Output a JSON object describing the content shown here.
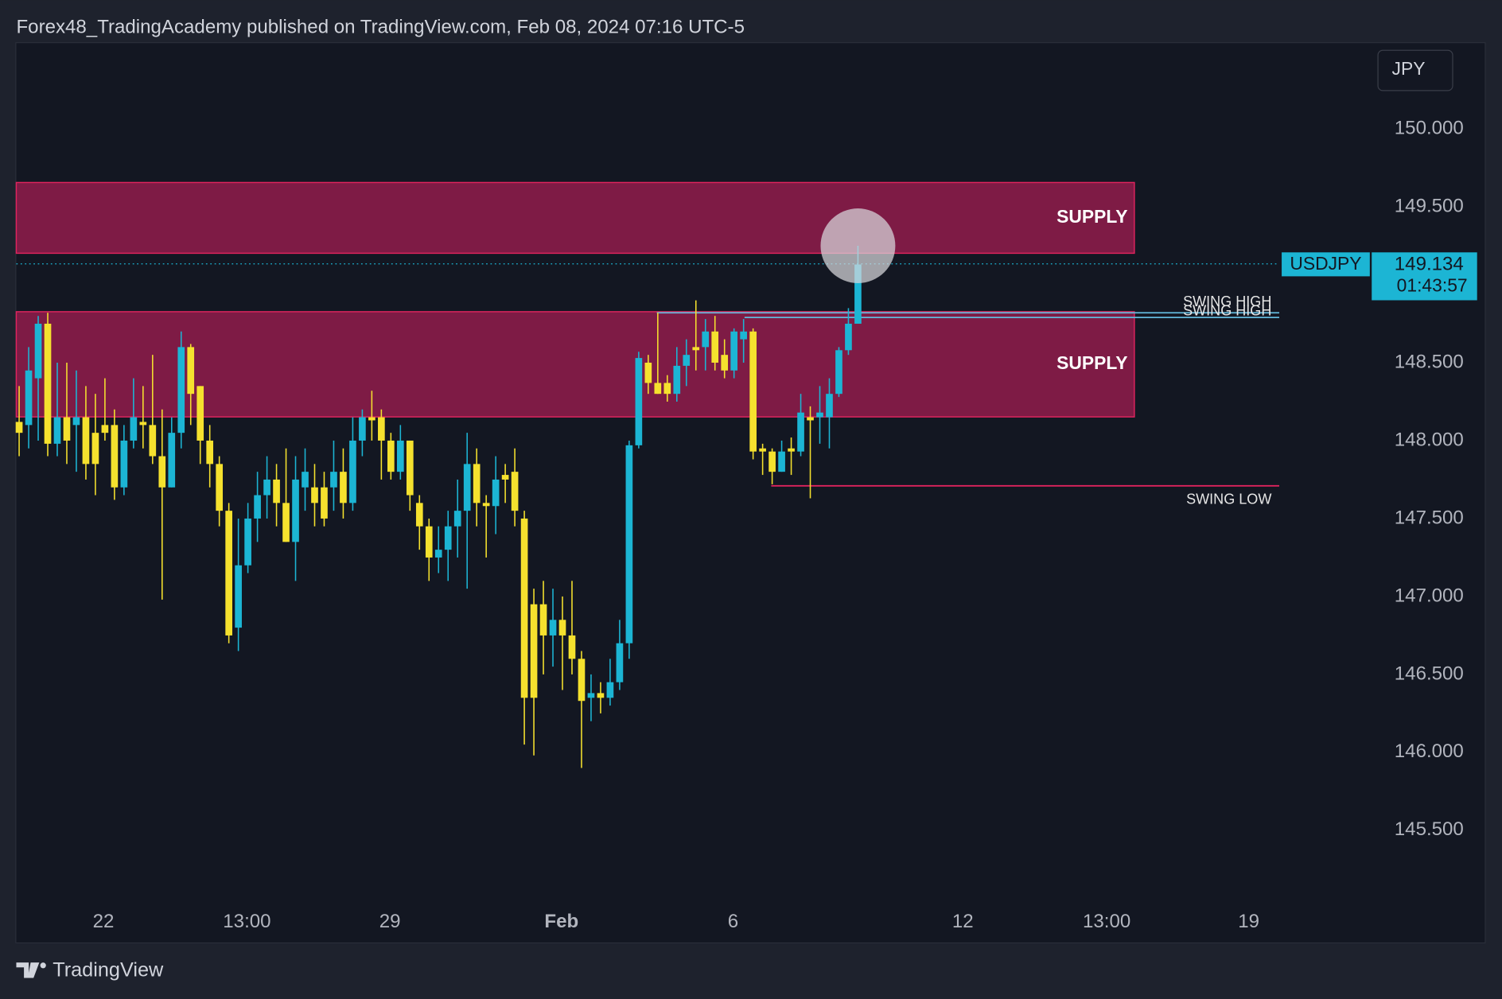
{
  "header": {
    "text": "Forex48_TradingAcademy published on TradingView.com, Feb 08, 2024 07:16 UTC-5"
  },
  "footer": {
    "brand": "TradingView"
  },
  "currency_button": "JPY",
  "chart_data": {
    "type": "candlestick",
    "up_color": "#1cb5d4",
    "down_color": "#f5e12e",
    "grid": false,
    "ylim": [
      145.02,
      150.55
    ],
    "yticks": [
      {
        "value": 150,
        "label": "150.000"
      },
      {
        "value": 149.5,
        "label": "149.500"
      },
      {
        "value": 148.5,
        "label": "148.500"
      },
      {
        "value": 148,
        "label": "148.000"
      },
      {
        "value": 147.5,
        "label": "147.500"
      },
      {
        "value": 147,
        "label": "147.000"
      },
      {
        "value": 146.5,
        "label": "146.500"
      },
      {
        "value": 146,
        "label": "146.000"
      },
      {
        "value": 145.5,
        "label": "145.500"
      }
    ],
    "xlim": [
      -0.3,
      141.7
    ],
    "xticks": [
      {
        "value": 8.84,
        "label": "22"
      },
      {
        "value": 23.9,
        "label": "13:00"
      },
      {
        "value": 38.9,
        "label": "29"
      },
      {
        "value": 56.9,
        "label": "Feb"
      },
      {
        "value": 74.9,
        "label": "6"
      },
      {
        "value": 99.0,
        "label": "12"
      },
      {
        "value": 114.1,
        "label": "13:00"
      },
      {
        "value": 129.0,
        "label": "19"
      }
    ],
    "open": [
      148.12,
      148.1,
      148.4,
      148.75,
      147.98,
      148.15,
      148.1,
      148.15,
      148.05,
      148.1,
      148.1,
      147.7,
      148.0,
      148.12,
      148.1,
      147.9,
      147.7,
      148.05,
      148.6,
      148.35,
      148.0,
      147.85,
      147.55,
      146.8,
      147.2,
      147.5,
      147.65,
      147.75,
      147.6,
      147.35,
      147.7,
      147.7,
      147.7,
      147.7,
      147.8,
      147.6,
      148.0,
      148.15,
      148.15,
      148.0,
      147.8,
      148.0,
      147.6,
      147.45,
      147.25,
      147.3,
      147.45,
      147.55,
      147.85,
      147.6,
      147.58,
      147.78,
      147.8,
      147.5,
      146.95,
      146.95,
      146.75,
      146.85,
      146.75,
      146.6,
      146.35,
      146.38,
      146.35,
      146.45,
      146.7,
      147.97,
      148.5,
      148.37,
      148.37,
      148.3,
      148.48,
      148.6,
      148.6,
      148.7,
      148.55,
      148.45,
      148.65,
      148.7,
      147.95,
      147.93,
      147.8,
      147.95,
      147.93,
      148.15,
      148.15,
      148.15,
      148.3,
      148.58,
      148.75
    ],
    "high": [
      148.35,
      148.6,
      148.8,
      148.82,
      148.5,
      148.5,
      148.45,
      148.35,
      148.3,
      148.4,
      148.2,
      148.1,
      148.4,
      148.35,
      148.55,
      148.2,
      148.15,
      148.7,
      148.62,
      148.35,
      148.1,
      147.9,
      147.6,
      147.5,
      147.6,
      147.8,
      147.9,
      147.85,
      147.95,
      147.9,
      147.95,
      147.85,
      147.8,
      148.0,
      147.95,
      148.15,
      148.2,
      148.32,
      148.2,
      148.05,
      148.1,
      148.0,
      147.65,
      147.5,
      147.45,
      147.55,
      147.75,
      148.05,
      147.95,
      147.65,
      147.9,
      147.85,
      147.95,
      147.55,
      147.05,
      147.1,
      147.05,
      147.0,
      147.1,
      146.65,
      146.5,
      146.45,
      146.6,
      146.85,
      148.0,
      148.57,
      148.55,
      148.82,
      148.42,
      148.6,
      148.65,
      148.9,
      148.78,
      148.8,
      148.65,
      148.72,
      148.78,
      148.72,
      147.98,
      147.95,
      148.0,
      148.02,
      148.3,
      148.22,
      148.35,
      148.4,
      148.6,
      148.85,
      149.25
    ],
    "low": [
      147.9,
      147.95,
      148.0,
      147.9,
      147.9,
      147.85,
      147.8,
      147.75,
      147.65,
      148.0,
      147.62,
      147.65,
      147.95,
      147.95,
      147.85,
      146.98,
      147.7,
      147.95,
      148.1,
      147.85,
      147.7,
      147.45,
      146.7,
      146.65,
      147.15,
      147.35,
      147.5,
      147.45,
      147.35,
      147.1,
      147.55,
      147.45,
      147.45,
      147.55,
      147.5,
      147.55,
      147.9,
      148.0,
      147.75,
      147.75,
      147.75,
      147.55,
      147.3,
      147.1,
      147.15,
      147.1,
      147.25,
      147.05,
      147.45,
      147.25,
      147.4,
      147.6,
      147.45,
      146.05,
      145.98,
      146.5,
      146.55,
      146.4,
      146.5,
      145.9,
      146.2,
      146.25,
      146.3,
      146.4,
      146.6,
      147.95,
      148.3,
      148.3,
      148.25,
      148.25,
      148.35,
      148.45,
      148.45,
      148.45,
      148.4,
      148.4,
      148.5,
      147.88,
      147.78,
      147.72,
      147.8,
      147.78,
      147.9,
      147.63,
      147.98,
      147.95,
      148.28,
      148.55,
      148.75
    ],
    "close": [
      148.05,
      148.45,
      148.75,
      147.98,
      148.15,
      148.0,
      148.15,
      147.85,
      147.85,
      148.05,
      147.7,
      148.0,
      148.15,
      148.1,
      147.9,
      147.7,
      148.05,
      148.6,
      148.3,
      148.0,
      147.85,
      147.55,
      146.75,
      147.2,
      147.5,
      147.65,
      147.75,
      147.6,
      147.35,
      147.75,
      147.8,
      147.6,
      147.5,
      147.8,
      147.6,
      148.0,
      148.15,
      148.13,
      148.0,
      147.8,
      148.0,
      147.65,
      147.45,
      147.25,
      147.3,
      147.45,
      147.55,
      147.85,
      147.6,
      147.58,
      147.75,
      147.75,
      147.55,
      146.35,
      146.35,
      146.75,
      146.85,
      146.75,
      146.6,
      146.33,
      146.38,
      146.35,
      146.45,
      146.7,
      147.97,
      148.53,
      148.37,
      148.3,
      148.3,
      148.48,
      148.55,
      148.58,
      148.7,
      148.5,
      148.45,
      148.7,
      148.7,
      147.93,
      147.93,
      147.8,
      147.93,
      147.93,
      148.18,
      148.13,
      148.18,
      148.3,
      148.58,
      148.75,
      149.13
    ],
    "zones": [
      {
        "label": "SUPPLY",
        "ylim": [
          149.202,
          149.656
        ],
        "x_end": 117,
        "color": "#7e1b45",
        "border": "#e0245e"
      },
      {
        "label": "SUPPLY",
        "ylim": [
          148.152,
          148.827
        ],
        "x_end": 117,
        "color": "#7e1b45",
        "border": "#e0245e"
      }
    ],
    "levels": [
      {
        "label": "SWING HIGH",
        "value": 148.82,
        "x": [
          66.9,
          132.2
        ],
        "color": "#62b9dc"
      },
      {
        "label": "SWING HIGH",
        "value": 148.79,
        "x": [
          76.1,
          132.2
        ],
        "color": "#62b9dc"
      },
      {
        "label": "SWING LOW",
        "value": 147.71,
        "x": [
          78.9,
          132.2
        ],
        "color": "#e0245e"
      }
    ],
    "last_price": {
      "symbol": "USDJPY",
      "value": 149.134,
      "countdown": "01:43:57",
      "color": "#1cb5d4"
    }
  }
}
